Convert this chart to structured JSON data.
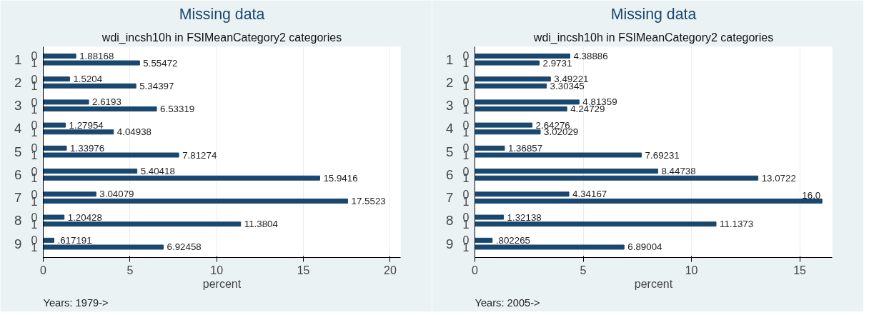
{
  "chart_data": [
    {
      "type": "bar",
      "orientation": "horizontal",
      "title": "Missing data",
      "subtitle": "wdi_incsh10h in FSIMeanCategory2 categories",
      "xlabel": "percent",
      "annotations": [
        "Years: 1979->"
      ],
      "categories": [
        "1",
        "2",
        "3",
        "4",
        "5",
        "6",
        "7",
        "8",
        "9"
      ],
      "xlim": [
        0,
        20.6
      ],
      "xticks": [
        0,
        5,
        10,
        15,
        20
      ],
      "grid": "x",
      "series": [
        {
          "name": "0",
          "color": "#1a476f",
          "values": [
            1.88168,
            1.5204,
            2.6193,
            1.27954,
            1.33976,
            5.40418,
            3.04079,
            1.20428,
            0.617191
          ],
          "value_labels": [
            "1.88168",
            "1.5204",
            "2.6193",
            "1.27954",
            "1.33976",
            "5.40418",
            "3.04079",
            "1.20428",
            ".617191"
          ]
        },
        {
          "name": "1",
          "color": "#1a476f",
          "values": [
            5.55472,
            5.34397,
            6.53319,
            4.04938,
            7.81274,
            15.9416,
            17.5523,
            11.3804,
            6.92458
          ],
          "value_labels": [
            "5.55472",
            "5.34397",
            "6.53319",
            "4.04938",
            "7.81274",
            "15.9416",
            "17.5523",
            "11.3804",
            "6.92458"
          ]
        }
      ]
    },
    {
      "type": "bar",
      "orientation": "horizontal",
      "title": "Missing data",
      "subtitle": "wdi_incsh10h in FSIMeanCategory2 categories",
      "xlabel": "percent",
      "annotations": [
        "Years: 2005->"
      ],
      "categories": [
        "1",
        "2",
        "3",
        "4",
        "5",
        "6",
        "7",
        "8",
        "9"
      ],
      "xlim": [
        0,
        16.5
      ],
      "xticks": [
        0,
        5,
        10,
        15
      ],
      "grid": "x",
      "series": [
        {
          "name": "0",
          "color": "#1a476f",
          "values": [
            4.38886,
            3.49221,
            4.81359,
            2.64276,
            1.36857,
            8.44738,
            4.34167,
            1.32138,
            0.802265
          ],
          "value_labels": [
            "4.38886",
            "3.49221",
            "4.81359",
            "2.64276",
            "1.36857",
            "8.44738",
            "4.34167",
            "1.32138",
            ".802265"
          ]
        },
        {
          "name": "1",
          "color": "#1a476f",
          "values": [
            2.9731,
            3.30345,
            4.24729,
            3.02029,
            7.69231,
            13.0722,
            16.03,
            11.1373,
            6.89004
          ],
          "value_labels": [
            "2.9731",
            "3.30345",
            "4.24729",
            "3.02029",
            "7.69231",
            "13.0722",
            "16.0",
            "11.1373",
            "6.89004"
          ]
        }
      ]
    }
  ]
}
